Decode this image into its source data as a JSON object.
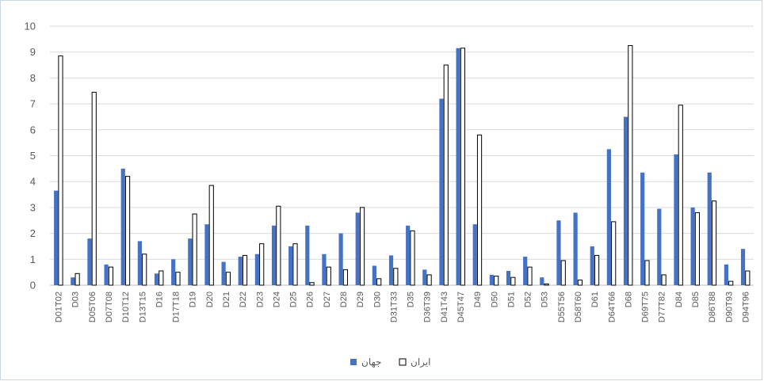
{
  "chart_data": {
    "type": "bar",
    "categories": [
      "D01T02",
      "D03",
      "D05T06",
      "D07T08",
      "D10T12",
      "D13T15",
      "D16",
      "D17T18",
      "D19",
      "D20",
      "D21",
      "D22",
      "D23",
      "D24",
      "D25",
      "D26",
      "D27",
      "D28",
      "D29",
      "D30",
      "D31T33",
      "D35",
      "D36T39",
      "D41T43",
      "D45T47",
      "D49",
      "D50",
      "D51",
      "D52",
      "D53",
      "D55T56",
      "D58T60",
      "D61",
      "D64T66",
      "D68",
      "D69T75",
      "D77T82",
      "D84",
      "D85",
      "D86T88",
      "D90T93",
      "D94T96"
    ],
    "series": [
      {
        "name": "جهان",
        "color": "#4472c4",
        "values": [
          3.65,
          0.3,
          1.8,
          0.8,
          4.5,
          1.7,
          0.45,
          1.0,
          1.8,
          2.35,
          0.9,
          1.1,
          1.2,
          2.3,
          1.5,
          2.3,
          1.2,
          2.0,
          2.8,
          0.75,
          1.15,
          2.3,
          0.6,
          7.2,
          9.15,
          2.35,
          0.4,
          0.55,
          1.1,
          0.3,
          2.5,
          2.8,
          1.5,
          5.25,
          6.5,
          4.35,
          2.95,
          5.05,
          3.0,
          4.35,
          0.8,
          1.4
        ]
      },
      {
        "name": "ایران",
        "color": "#ffffff",
        "values": [
          8.85,
          0.45,
          7.45,
          0.7,
          4.2,
          1.2,
          0.55,
          0.5,
          2.75,
          3.85,
          0.5,
          1.15,
          1.6,
          3.05,
          1.6,
          0.1,
          0.7,
          0.6,
          3.0,
          0.25,
          0.65,
          2.1,
          0.4,
          8.5,
          9.15,
          5.8,
          0.35,
          0.3,
          0.7,
          0.05,
          0.95,
          0.2,
          1.15,
          2.45,
          9.25,
          0.95,
          0.4,
          6.95,
          2.8,
          3.25,
          0.15,
          0.55
        ]
      }
    ],
    "yticks": [
      0,
      1,
      2,
      3,
      4,
      5,
      6,
      7,
      8,
      9,
      10
    ],
    "ylim": [
      0,
      10
    ],
    "grid": true,
    "legend_position": "bottom"
  }
}
